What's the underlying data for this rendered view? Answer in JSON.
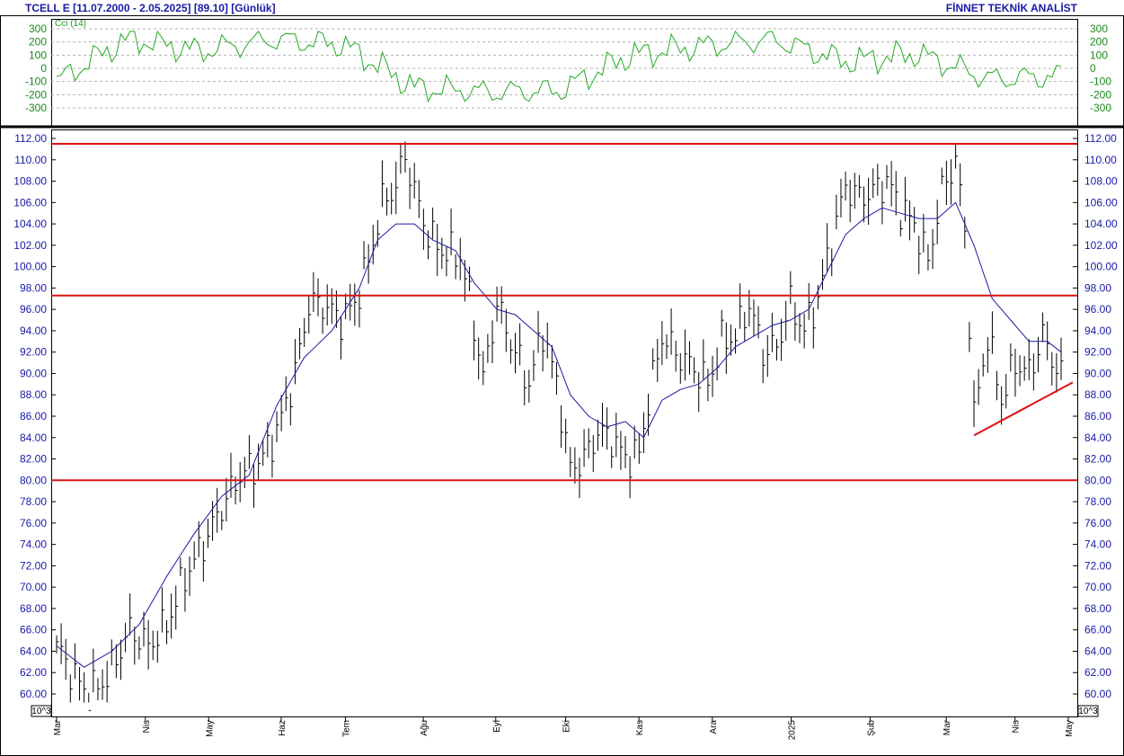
{
  "header": {
    "title": "TCELL E  [11.07.2000 - 2.05.2025]  [89.10]  [Günlük]",
    "brand": "FİNNET TEKNİK ANALİST"
  },
  "indicator": {
    "label": "Cci (14)"
  },
  "unit_label": "10^3",
  "colors": {
    "axis_text": "#1a1aa6",
    "cci_line": "#22aa22",
    "ma_line": "#1a1aa6",
    "levels": "#dd1111",
    "bars": "#000000"
  },
  "chart_data": [
    {
      "type": "line",
      "title": "Cci (14)",
      "ylim": [
        -300,
        300
      ],
      "y_ticks": [
        "300",
        "200",
        "100",
        "0",
        "-100",
        "-200",
        "-300"
      ],
      "grid": true,
      "x": [
        "Mar",
        "Nis",
        "May",
        "Haz",
        "Tem",
        "Ağu",
        "Eyl",
        "Eki",
        "Kas",
        "Ara",
        "2025",
        "Şub",
        "Mar",
        "Nis",
        "May"
      ],
      "series": [
        {
          "name": "Cci (14)",
          "values": [
            -100,
            230,
            130,
            220,
            180,
            -150,
            -180,
            -170,
            100,
            170,
            220,
            50,
            110,
            -80,
            -60
          ]
        }
      ]
    },
    {
      "type": "bar",
      "subtype": "hlc-bars",
      "ylim": [
        59,
        112.5
      ],
      "y_ticks": [
        "112.00",
        "110.00",
        "108.00",
        "106.00",
        "104.00",
        "102.00",
        "100.00",
        "98.00",
        "96.00",
        "94.00",
        "92.00",
        "90.00",
        "88.00",
        "86.00",
        "84.00",
        "82.00",
        "80.00",
        "78.00",
        "76.00",
        "74.00",
        "72.00",
        "70.00",
        "68.00",
        "66.00",
        "64.00",
        "62.00",
        "60.00"
      ],
      "x_ticks": [
        "Mar",
        "Nis",
        "May",
        "Haz",
        "Tem",
        "Ağu",
        "Eyl",
        "Eki",
        "Kas",
        "Ara",
        "2025",
        "Şub",
        "Mar",
        "Nis",
        "May"
      ],
      "close_path": [
        [
          0,
          64.5
        ],
        [
          4,
          61.5
        ],
        [
          7,
          60.0
        ],
        [
          11,
          61.5
        ],
        [
          16,
          66.0
        ],
        [
          20,
          64.5
        ],
        [
          24,
          66.5
        ],
        [
          28,
          71.0
        ],
        [
          32,
          74.0
        ],
        [
          36,
          77.5
        ],
        [
          40,
          80.5
        ],
        [
          44,
          81.5
        ],
        [
          48,
          84.5
        ],
        [
          52,
          90.0
        ],
        [
          55,
          96.5
        ],
        [
          58,
          96.5
        ],
        [
          62,
          95.0
        ],
        [
          65,
          96.5
        ],
        [
          68,
          100.5
        ],
        [
          71,
          106.0
        ],
        [
          74,
          107.5
        ],
        [
          76,
          110.5
        ],
        [
          78,
          107.0
        ],
        [
          81,
          103.0
        ],
        [
          84,
          101.5
        ],
        [
          88,
          101.0
        ],
        [
          90,
          97.0
        ],
        [
          93,
          89.5
        ],
        [
          96,
          96.5
        ],
        [
          99,
          93.0
        ],
        [
          103,
          89.0
        ],
        [
          106,
          94.0
        ],
        [
          109,
          89.0
        ],
        [
          112,
          81.0
        ],
        [
          115,
          82.0
        ],
        [
          118,
          84.5
        ],
        [
          121,
          84.0
        ],
        [
          124,
          82.0
        ],
        [
          127,
          82.5
        ],
        [
          129,
          87.5
        ],
        [
          132,
          93.5
        ],
        [
          136,
          91.5
        ],
        [
          139,
          90.5
        ],
        [
          142,
          89.0
        ],
        [
          145,
          93.0
        ],
        [
          148,
          93.5
        ],
        [
          151,
          96.5
        ],
        [
          154,
          92.0
        ],
        [
          157,
          92.5
        ],
        [
          160,
          96.5
        ],
        [
          163,
          94.0
        ],
        [
          166,
          97.0
        ],
        [
          169,
          102.5
        ],
        [
          172,
          107.5
        ],
        [
          175,
          106.5
        ],
        [
          178,
          107.0
        ],
        [
          181,
          108.0
        ],
        [
          184,
          105.5
        ],
        [
          187,
          104.0
        ],
        [
          190,
          100.5
        ],
        [
          193,
          107.0
        ],
        [
          196,
          110.0
        ],
        [
          198,
          103.5
        ],
        [
          200,
          86.0
        ],
        [
          203,
          93.5
        ],
        [
          206,
          87.5
        ],
        [
          209,
          91.0
        ],
        [
          212,
          90.0
        ],
        [
          215,
          93.5
        ],
        [
          217,
          91.5
        ],
        [
          219,
          89.5
        ]
      ],
      "moving_average": [
        [
          0,
          64.5
        ],
        [
          6,
          62.5
        ],
        [
          12,
          64.0
        ],
        [
          18,
          66.5
        ],
        [
          24,
          71.0
        ],
        [
          30,
          75.0
        ],
        [
          36,
          78.5
        ],
        [
          42,
          80.5
        ],
        [
          48,
          87.0
        ],
        [
          54,
          91.5
        ],
        [
          60,
          94.0
        ],
        [
          66,
          98.0
        ],
        [
          70,
          102.5
        ],
        [
          74,
          104.0
        ],
        [
          78,
          104.0
        ],
        [
          82,
          102.5
        ],
        [
          87,
          101.5
        ],
        [
          91,
          98.5
        ],
        [
          96,
          96.0
        ],
        [
          100,
          95.5
        ],
        [
          104,
          94.0
        ],
        [
          108,
          92.5
        ],
        [
          112,
          88.0
        ],
        [
          116,
          86.0
        ],
        [
          120,
          85.0
        ],
        [
          124,
          85.5
        ],
        [
          128,
          84.0
        ],
        [
          132,
          87.5
        ],
        [
          136,
          88.5
        ],
        [
          140,
          89.0
        ],
        [
          144,
          90.5
        ],
        [
          148,
          92.5
        ],
        [
          152,
          93.5
        ],
        [
          156,
          94.5
        ],
        [
          160,
          95.0
        ],
        [
          164,
          96.0
        ],
        [
          168,
          99.5
        ],
        [
          172,
          103.0
        ],
        [
          176,
          104.5
        ],
        [
          180,
          105.5
        ],
        [
          184,
          105.0
        ],
        [
          188,
          104.5
        ],
        [
          192,
          104.5
        ],
        [
          196,
          106.0
        ],
        [
          200,
          102.0
        ],
        [
          204,
          97.0
        ],
        [
          208,
          95.0
        ],
        [
          212,
          93.0
        ],
        [
          216,
          93.0
        ],
        [
          219,
          92.0
        ]
      ],
      "horizontal_levels": [
        111.5,
        97.3,
        80.0
      ],
      "trendline": [
        [
          200,
          84.2
        ],
        [
          219,
          89.0
        ]
      ]
    }
  ]
}
